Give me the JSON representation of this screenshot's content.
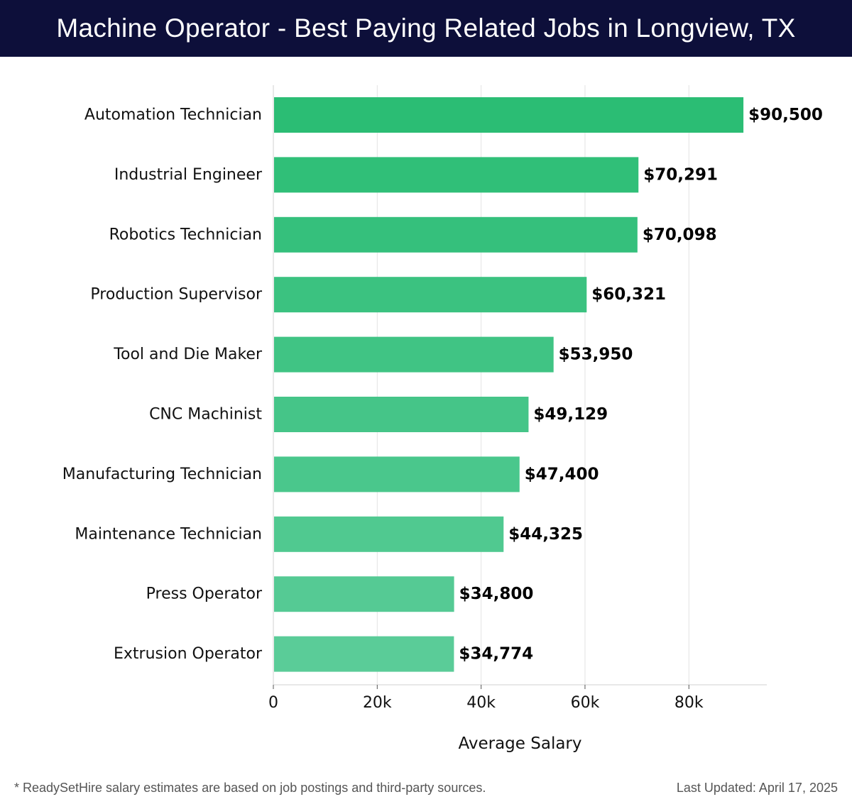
{
  "header": {
    "title": "Machine Operator - Best Paying Related Jobs in Longview, TX"
  },
  "footer": {
    "note": "* ReadySetHire salary estimates are based on job postings and third-party sources.",
    "updated": "Last Updated: April 17, 2025"
  },
  "colors": {
    "title_bg": "#0d0f3a",
    "bar_top": "#2bbd74",
    "bar_bottom": "#5acc98",
    "grid": "#e2e2e2"
  },
  "chart_data": {
    "type": "bar",
    "orientation": "horizontal",
    "categories": [
      "Automation Technician",
      "Industrial Engineer",
      "Robotics Technician",
      "Production Supervisor",
      "Tool and Die Maker",
      "CNC Machinist",
      "Manufacturing Technician",
      "Maintenance Technician",
      "Press Operator",
      "Extrusion Operator"
    ],
    "values": [
      90500,
      70291,
      70098,
      60321,
      53950,
      49129,
      47400,
      44325,
      34800,
      34774
    ],
    "value_labels": [
      "$90,500",
      "$70,291",
      "$70,098",
      "$60,321",
      "$53,950",
      "$49,129",
      "$47,400",
      "$44,325",
      "$34,800",
      "$34,774"
    ],
    "xlabel": "Average Salary",
    "ylabel": "",
    "xlim": [
      0,
      95000
    ],
    "xticks": [
      0,
      20000,
      40000,
      60000,
      80000
    ],
    "xtick_labels": [
      "0",
      "20k",
      "40k",
      "60k",
      "80k"
    ],
    "grid": true
  }
}
